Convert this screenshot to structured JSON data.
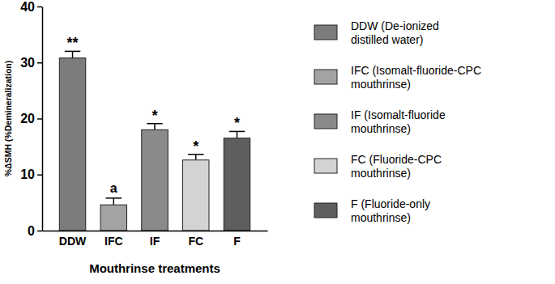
{
  "chart_data": {
    "type": "bar",
    "x_label": "Mouthrinse treatments",
    "y_label": "%ΔSMH (%Demineralization)",
    "categories": [
      "DDW",
      "IFC",
      "IF",
      "FC",
      "F"
    ],
    "values": [
      30.8,
      4.6,
      18.0,
      12.6,
      16.5
    ],
    "errors": [
      1.2,
      1.2,
      1.1,
      1.0,
      1.2
    ],
    "annotations": [
      "**",
      "a",
      "*",
      "*",
      "*"
    ],
    "colors": [
      "#7c7c7c",
      "#a3a3a3",
      "#8a8a8a",
      "#d3d3d3",
      "#5e5e5e"
    ],
    "legend_entries": [
      [
        "DDW (De-ionized",
        "distilled water)"
      ],
      [
        "IFC (Isomalt-fluoride-CPC",
        "mouthrinse)"
      ],
      [
        "IF (Isomalt-fluoride",
        "mouthrinse)"
      ],
      [
        "FC (Fluoride-CPC",
        "mouthrinse)"
      ],
      [
        "F (Fluoride-only",
        "mouthrinse)"
      ]
    ],
    "legend": "right",
    "ylim": [
      0,
      40
    ],
    "yticks": [
      0,
      10,
      20,
      30,
      40
    ],
    "grid": false
  }
}
